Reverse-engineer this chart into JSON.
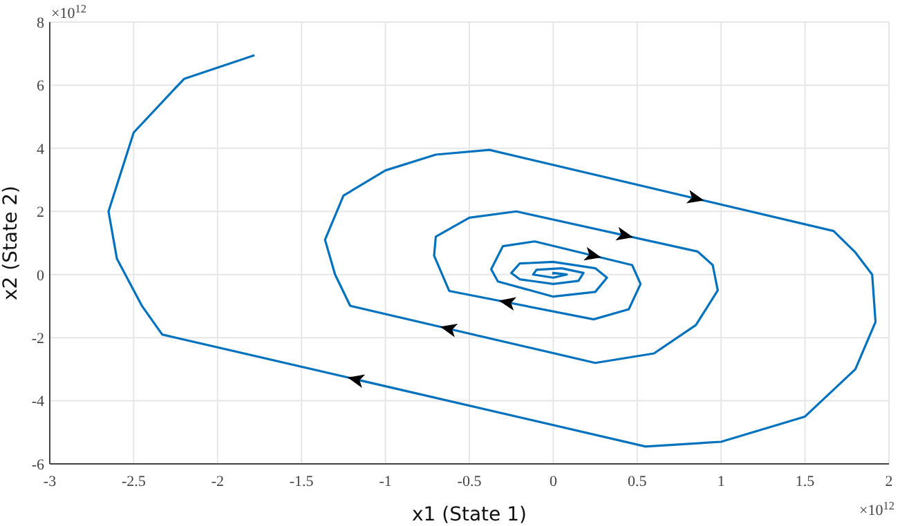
{
  "chart_data": {
    "type": "line",
    "xlabel": "x1 (State 1)",
    "ylabel": "x2 (State 2)",
    "annotations": [
      "×10$^{12}$",
      "×10$^{12}$"
    ],
    "xlim": [
      -3,
      2
    ],
    "xticks": [
      -3,
      -2.5,
      -2,
      -1.5,
      -1,
      -0.5,
      0,
      0.5,
      1,
      1.5,
      2
    ],
    "ylim": [
      -6,
      8
    ],
    "yticks": [
      -6,
      -4,
      -2,
      0,
      2,
      4,
      6,
      8
    ],
    "grid": true,
    "marker": "none",
    "line_style": "solid",
    "series": [
      {
        "color": "#0072bd",
        "x": [
          -1.78,
          -2.2,
          -2.5,
          -2.65,
          -2.6,
          -2.45,
          -2.33,
          0.55,
          1.0,
          1.5,
          1.8,
          1.92,
          1.9,
          1.8,
          1.67,
          -0.38,
          -0.7,
          -1.0,
          -1.25,
          -1.36,
          -1.3,
          -1.21,
          0.25,
          0.6,
          0.85,
          0.98,
          0.95,
          0.86,
          -0.22,
          -0.5,
          -0.7,
          -0.71,
          -0.62,
          0.24,
          0.45,
          0.52,
          0.47,
          -0.11,
          -0.3,
          -0.37,
          -0.33,
          0.0,
          0.25,
          0.32,
          0.25,
          0.0,
          -0.2,
          -0.25,
          -0.2,
          0.0,
          0.15,
          0.18,
          0.05,
          -0.1,
          -0.12,
          0.0,
          0.08,
          0.0,
          0.0
        ],
        "values": [
          6.95,
          6.2,
          4.5,
          2.0,
          0.5,
          -1.0,
          -1.9,
          -5.45,
          -5.3,
          -4.5,
          -3.0,
          -1.5,
          0.0,
          0.7,
          1.38,
          3.95,
          3.8,
          3.3,
          2.5,
          1.1,
          0.0,
          -0.99,
          -2.8,
          -2.5,
          -1.6,
          -0.5,
          0.3,
          0.73,
          2.0,
          1.8,
          1.2,
          0.6,
          -0.52,
          -1.42,
          -1.1,
          -0.3,
          0.3,
          1.05,
          0.9,
          0.17,
          -0.22,
          -0.7,
          -0.55,
          -0.1,
          0.2,
          0.4,
          0.35,
          0.05,
          -0.15,
          -0.3,
          -0.2,
          0.05,
          0.2,
          0.15,
          0.0,
          -0.1,
          0.0,
          0.05,
          0.0
        ]
      }
    ]
  }
}
